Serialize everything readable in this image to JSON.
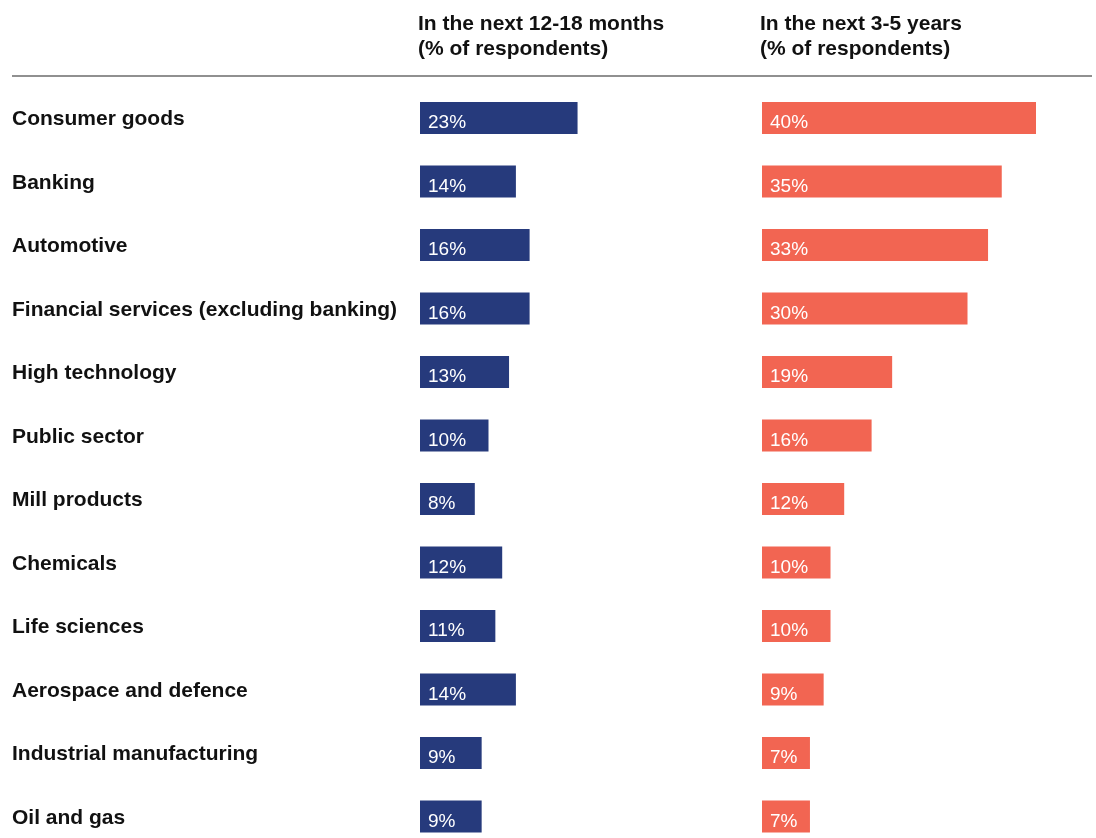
{
  "chart_data": [
    {
      "type": "bar",
      "orientation": "horizontal",
      "title": "In the next 12-18 months\n(% of respondents)",
      "tick_labels": "y",
      "categories": [
        "Consumer goods",
        "Banking",
        "Automotive",
        "Financial services (excluding banking)",
        "High technology",
        "Public sector",
        "Mill products",
        "Chemicals",
        "Life sciences",
        "Aerospace and defence",
        "Industrial manufacturing",
        "Oil and gas"
      ],
      "values": [
        23,
        14,
        16,
        16,
        13,
        10,
        8,
        12,
        11,
        14,
        9,
        9
      ],
      "value_labels": [
        "23%",
        "14%",
        "16%",
        "16%",
        "13%",
        "10%",
        "8%",
        "12%",
        "11%",
        "14%",
        "9%",
        "9%"
      ],
      "color": "#263a7c"
    },
    {
      "type": "bar",
      "orientation": "horizontal",
      "title": "In the next 3-5 years\n(% of respondents)",
      "tick_labels": false,
      "categories": [
        null,
        null,
        null,
        null,
        null,
        null,
        null,
        null,
        null,
        null,
        null,
        null
      ],
      "values": [
        40,
        35,
        33,
        30,
        19,
        16,
        12,
        10,
        10,
        9,
        7,
        7
      ],
      "value_labels": [
        "40%",
        "35%",
        "33%",
        "30%",
        "19%",
        "16%",
        "12%",
        "10%",
        "10%",
        "9%",
        "7%",
        "7%"
      ],
      "color": "#f26552"
    }
  ]
}
